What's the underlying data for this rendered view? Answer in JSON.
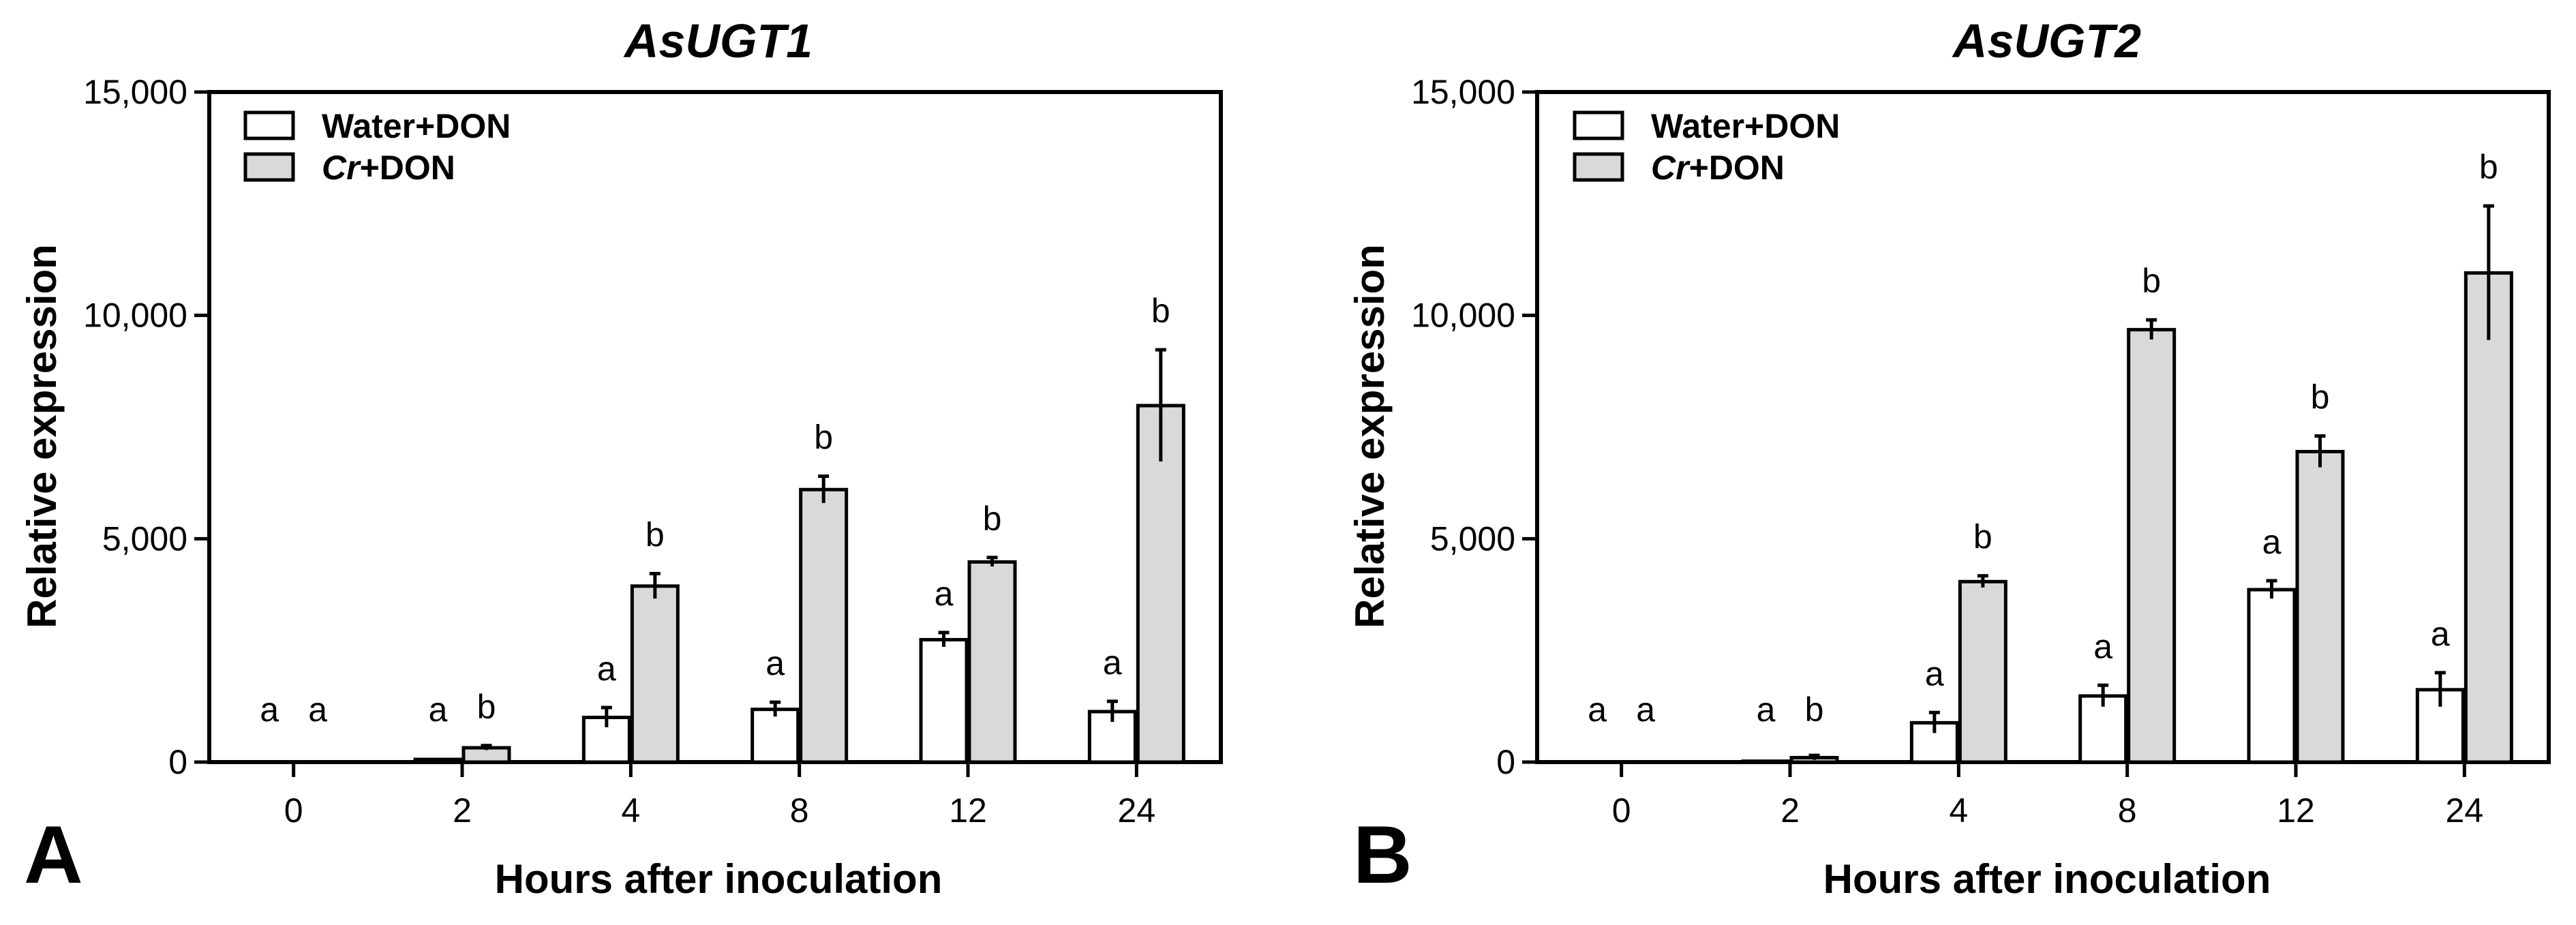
{
  "chart_data": [
    {
      "type": "bar",
      "panel_label": "A",
      "title": "AsUGT1",
      "xlabel": "Hours after inoculation",
      "ylabel": "Relative expression",
      "ylim": [
        0,
        15000
      ],
      "yticks": [
        0,
        5000,
        10000,
        15000
      ],
      "ytick_labels": [
        "0",
        "5,000",
        "10,000",
        "15,000"
      ],
      "categories": [
        "0",
        "2",
        "4",
        "8",
        "12",
        "24"
      ],
      "legend_position": "top-left",
      "series": [
        {
          "name": "Water+DON",
          "legend_plain": "Water+DON",
          "legend_italic": "",
          "fill": "#ffffff",
          "values": [
            5,
            60,
            1000,
            1180,
            2740,
            1130
          ],
          "errors": [
            5,
            20,
            220,
            160,
            160,
            230
          ],
          "letters": [
            "a",
            "a",
            "a",
            "a",
            "a",
            "a"
          ]
        },
        {
          "name": "Cr+DON",
          "legend_plain": "+DON",
          "legend_italic": "Cr",
          "fill": "#d9d9d9",
          "values": [
            5,
            320,
            3940,
            6100,
            4480,
            7980
          ],
          "errors": [
            5,
            50,
            280,
            300,
            100,
            1250
          ],
          "letters": [
            "a",
            "b",
            "b",
            "b",
            "b",
            "b"
          ]
        }
      ]
    },
    {
      "type": "bar",
      "panel_label": "B",
      "title": "AsUGT2",
      "xlabel": "Hours after inoculation",
      "ylabel": "Relative expression",
      "ylim": [
        0,
        15000
      ],
      "yticks": [
        0,
        5000,
        10000,
        15000
      ],
      "ytick_labels": [
        "0",
        "5,000",
        "10,000",
        "15,000"
      ],
      "categories": [
        "0",
        "2",
        "4",
        "8",
        "12",
        "24"
      ],
      "legend_position": "top-left",
      "series": [
        {
          "name": "Water+DON",
          "legend_plain": "Water+DON",
          "legend_italic": "",
          "fill": "#ffffff",
          "values": [
            5,
            20,
            880,
            1480,
            3860,
            1620
          ],
          "errors": [
            5,
            10,
            230,
            240,
            200,
            380
          ],
          "letters": [
            "a",
            "a",
            "a",
            "a",
            "a",
            "a"
          ]
        },
        {
          "name": "Cr+DON",
          "legend_plain": "+DON",
          "legend_italic": "Cr",
          "fill": "#d9d9d9",
          "values": [
            5,
            100,
            4040,
            9680,
            6950,
            10950
          ],
          "errors": [
            5,
            50,
            130,
            220,
            350,
            1500
          ],
          "letters": [
            "a",
            "b",
            "b",
            "b",
            "b",
            "b"
          ]
        }
      ]
    }
  ]
}
